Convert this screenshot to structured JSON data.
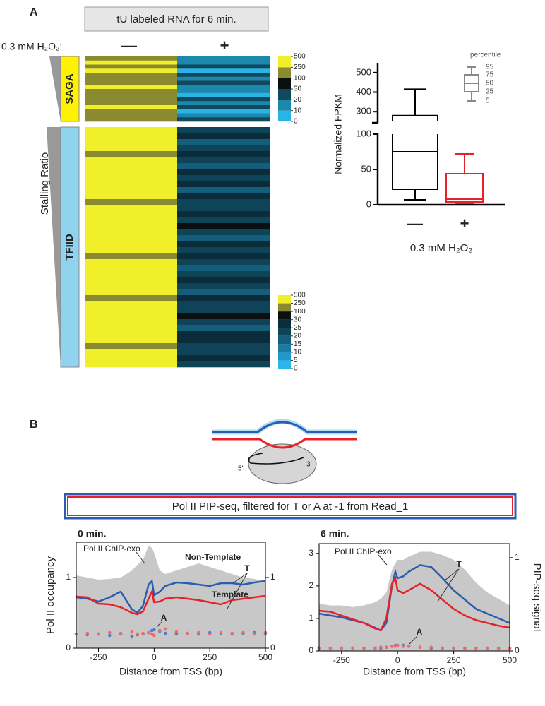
{
  "panel_labels": [
    "A",
    "B"
  ],
  "diagram": {
    "five_prime": "5′",
    "three_prime": "3′"
  },
  "banner": "Pol II PIP-seq, filtered for T or A at -1 from Read_1",
  "chart_data": [
    {
      "type": "heatmap",
      "title": "tU labeled RNA for 6 min.",
      "row_label": "0.3 mM H₂O₂:",
      "columns": [
        "—",
        "+"
      ],
      "column_colors": [
        "#111111",
        "#e8202a"
      ],
      "axis_label": "Stalling Ratio",
      "groups": [
        {
          "name": "SAGA",
          "color": "#fff200",
          "rows": [
            [
              180,
              18
            ],
            [
              260,
              12
            ],
            [
              140,
              25
            ],
            [
              300,
              8
            ],
            [
              120,
              22
            ],
            [
              220,
              15
            ],
            [
              160,
              28
            ],
            [
              280,
              11
            ],
            [
              110,
              19
            ],
            [
              240,
              9
            ],
            [
              190,
              24
            ],
            [
              130,
              14
            ],
            [
              270,
              21
            ],
            [
              150,
              7
            ],
            [
              210,
              16
            ],
            [
              170,
              26
            ]
          ],
          "colorbar": {
            "ticks": [
              0,
              10,
              20,
              30,
              100,
              250,
              500
            ],
            "colors": [
              "#2ab4e6",
              "#1c88ad",
              "#10485c",
              "#0a0f10",
              "#8a8a30",
              "#f0ef2a"
            ]
          }
        },
        {
          "name": "TFIID",
          "color": "#8fd3ef",
          "rows": [
            [
              380,
              22
            ],
            [
              420,
              26
            ],
            [
              300,
              18
            ],
            [
              360,
              24
            ],
            [
              170,
              28
            ],
            [
              400,
              21
            ],
            [
              340,
              19
            ],
            [
              450,
              27
            ],
            [
              390,
              23
            ],
            [
              310,
              25
            ],
            [
              370,
              17
            ],
            [
              410,
              29
            ],
            [
              160,
              22
            ],
            [
              350,
              20
            ],
            [
              430,
              26
            ],
            [
              380,
              24
            ],
            [
              290,
              31
            ],
            [
              360,
              21
            ],
            [
              400,
              18
            ],
            [
              340,
              25
            ],
            [
              370,
              23
            ],
            [
              150,
              27
            ],
            [
              410,
              20
            ],
            [
              390,
              16
            ],
            [
              330,
              24
            ],
            [
              360,
              28
            ],
            [
              420,
              22
            ],
            [
              380,
              19
            ],
            [
              200,
              26
            ],
            [
              350,
              23
            ],
            [
              400,
              21
            ],
            [
              370,
              30
            ],
            [
              310,
              24
            ],
            [
              440,
              18
            ],
            [
              360,
              25
            ],
            [
              390,
              27
            ],
            [
              180,
              22
            ],
            [
              350,
              20
            ],
            [
              410,
              26
            ],
            [
              380,
              23
            ]
          ],
          "colorbar": {
            "ticks": [
              0,
              5,
              10,
              15,
              20,
              25,
              30,
              100,
              250,
              500
            ],
            "colors": [
              "#2ab8ec",
              "#2298c6",
              "#1a7aa0",
              "#145e7c",
              "#0f4458",
              "#0b2c3a",
              "#0a0f10",
              "#8a8a30",
              "#f0ef2a"
            ]
          }
        }
      ]
    },
    {
      "type": "box",
      "ylabel": "Normalized FPKM",
      "xlabel": "0.3 mM H₂O₂",
      "categories": [
        "—",
        "+"
      ],
      "colors": [
        "#000000",
        "#e8202a"
      ],
      "boxes": [
        {
          "p5": 7,
          "p25": 22,
          "p50": 75,
          "p75": 280,
          "p95": 415
        },
        {
          "p5": 2,
          "p25": 4,
          "p50": 8,
          "p75": 44,
          "p95": 72
        }
      ],
      "ylims": [
        [
          0,
          100
        ],
        [
          250,
          550
        ]
      ],
      "yticks": [
        0,
        50,
        100,
        300,
        400,
        500
      ],
      "percentile_legend": {
        "title": "percentile",
        "labels": [
          95,
          75,
          50,
          25,
          5
        ]
      }
    },
    {
      "type": "line",
      "title": "0 min.",
      "title_color": "#000000",
      "ylabel": "Pol II occupancy",
      "xlabel": "Distance from TSS (bp)",
      "x": [
        -350,
        -300,
        -250,
        -200,
        -150,
        -100,
        -75,
        -50,
        -25,
        -10,
        0,
        25,
        50,
        100,
        150,
        200,
        250,
        300,
        350,
        400,
        450,
        500
      ],
      "xlim": [
        -350,
        500
      ],
      "xticks": [
        -250,
        0,
        250,
        500
      ],
      "ylim": [
        0,
        1.5
      ],
      "yticks": [
        0,
        1
      ],
      "y2lim": [
        0,
        1.5
      ],
      "y2ticks": [
        0,
        1
      ],
      "annotations": [
        "Pol II ChIP-exo",
        "T",
        "A"
      ],
      "series": [
        {
          "style": "area",
          "color": "#c8c8c8",
          "values": [
            1.03,
            1.0,
            0.97,
            0.98,
            1.0,
            1.1,
            1.18,
            1.25,
            1.45,
            1.42,
            1.35,
            1.1,
            1.05,
            1.1,
            1.15,
            1.2,
            1.15,
            1.1,
            1.05,
            1.0,
            0.98,
            0.95
          ]
        },
        {
          "name": "Non-Template",
          "style": "line",
          "axis": "y2",
          "color": "#2a5db0",
          "values": [
            0.72,
            0.7,
            0.66,
            0.72,
            0.8,
            0.55,
            0.5,
            0.6,
            0.9,
            0.95,
            0.75,
            0.8,
            0.88,
            0.93,
            0.92,
            0.9,
            0.88,
            0.92,
            0.92,
            0.9,
            0.93,
            0.95
          ]
        },
        {
          "name": "Template",
          "style": "line",
          "axis": "y2",
          "color": "#e8202a",
          "values": [
            0.73,
            0.72,
            0.63,
            0.62,
            0.58,
            0.5,
            0.48,
            0.52,
            0.7,
            0.8,
            0.65,
            0.66,
            0.7,
            0.72,
            0.7,
            0.68,
            0.65,
            0.62,
            0.68,
            0.7,
            0.72,
            0.74
          ]
        },
        {
          "style": "dots",
          "axis": "y2",
          "color": "#4a7fd0",
          "values": [
            0.2,
            0.19,
            0.2,
            0.18,
            0.2,
            0.17,
            0.19,
            0.2,
            0.22,
            0.25,
            0.26,
            0.24,
            0.21,
            0.2,
            0.21,
            0.2,
            0.22,
            0.21,
            0.2,
            0.21,
            0.22,
            0.21
          ]
        },
        {
          "style": "dots",
          "axis": "y2",
          "color": "#f06a6a",
          "values": [
            0.2,
            0.21,
            0.2,
            0.22,
            0.21,
            0.23,
            0.2,
            0.21,
            0.22,
            0.2,
            0.18,
            0.25,
            0.27,
            0.23,
            0.21,
            0.22,
            0.2,
            0.22,
            0.21,
            0.22,
            0.2,
            0.22
          ]
        }
      ]
    },
    {
      "type": "line",
      "title": "6 min.",
      "title_color": "#e8202a",
      "y2label": "PIP-seq signal",
      "xlabel": "Distance from TSS (bp)",
      "x": [
        -350,
        -300,
        -250,
        -200,
        -150,
        -100,
        -75,
        -50,
        -25,
        -10,
        0,
        25,
        50,
        100,
        150,
        200,
        250,
        300,
        350,
        400,
        450,
        500
      ],
      "xlim": [
        -350,
        500
      ],
      "xticks": [
        -250,
        0,
        250,
        500
      ],
      "ylim": [
        0,
        3.3
      ],
      "yticks": [
        0,
        1,
        2,
        3
      ],
      "y2lim": [
        0,
        1.15
      ],
      "y2ticks": [
        0,
        1
      ],
      "annotations": [
        "Pol II ChIP-exo",
        "T",
        "A"
      ],
      "series": [
        {
          "style": "area",
          "color": "#c8c8c8",
          "values": [
            1.45,
            1.4,
            1.4,
            1.35,
            1.4,
            1.5,
            1.6,
            1.8,
            2.5,
            2.7,
            2.8,
            2.8,
            2.9,
            3.05,
            3.05,
            2.95,
            2.8,
            2.5,
            2.1,
            1.8,
            1.6,
            1.4
          ]
        },
        {
          "style": "line",
          "axis": "y2",
          "color": "#2a5db0",
          "values": [
            0.4,
            0.38,
            0.36,
            0.33,
            0.3,
            0.25,
            0.22,
            0.3,
            0.7,
            0.85,
            0.78,
            0.8,
            0.85,
            0.92,
            0.9,
            0.78,
            0.65,
            0.55,
            0.45,
            0.4,
            0.35,
            0.3
          ]
        },
        {
          "style": "line",
          "axis": "y2",
          "color": "#e8202a",
          "values": [
            0.43,
            0.42,
            0.38,
            0.34,
            0.3,
            0.24,
            0.22,
            0.35,
            0.72,
            0.78,
            0.65,
            0.62,
            0.65,
            0.72,
            0.65,
            0.55,
            0.45,
            0.38,
            0.33,
            0.3,
            0.27,
            0.25
          ]
        },
        {
          "style": "dots",
          "axis": "y2",
          "color": "#4a7fd0",
          "values": [
            0.03,
            0.03,
            0.03,
            0.03,
            0.03,
            0.03,
            0.03,
            0.04,
            0.05,
            0.06,
            0.06,
            0.06,
            0.05,
            0.04,
            0.03,
            0.03,
            0.03,
            0.03,
            0.03,
            0.03,
            0.03,
            0.03
          ]
        },
        {
          "style": "dots",
          "axis": "y2",
          "color": "#f06a6a",
          "values": [
            0.03,
            0.03,
            0.03,
            0.03,
            0.03,
            0.03,
            0.04,
            0.04,
            0.05,
            0.05,
            0.06,
            0.05,
            0.05,
            0.04,
            0.04,
            0.03,
            0.03,
            0.03,
            0.03,
            0.03,
            0.03,
            0.03
          ]
        }
      ]
    }
  ]
}
